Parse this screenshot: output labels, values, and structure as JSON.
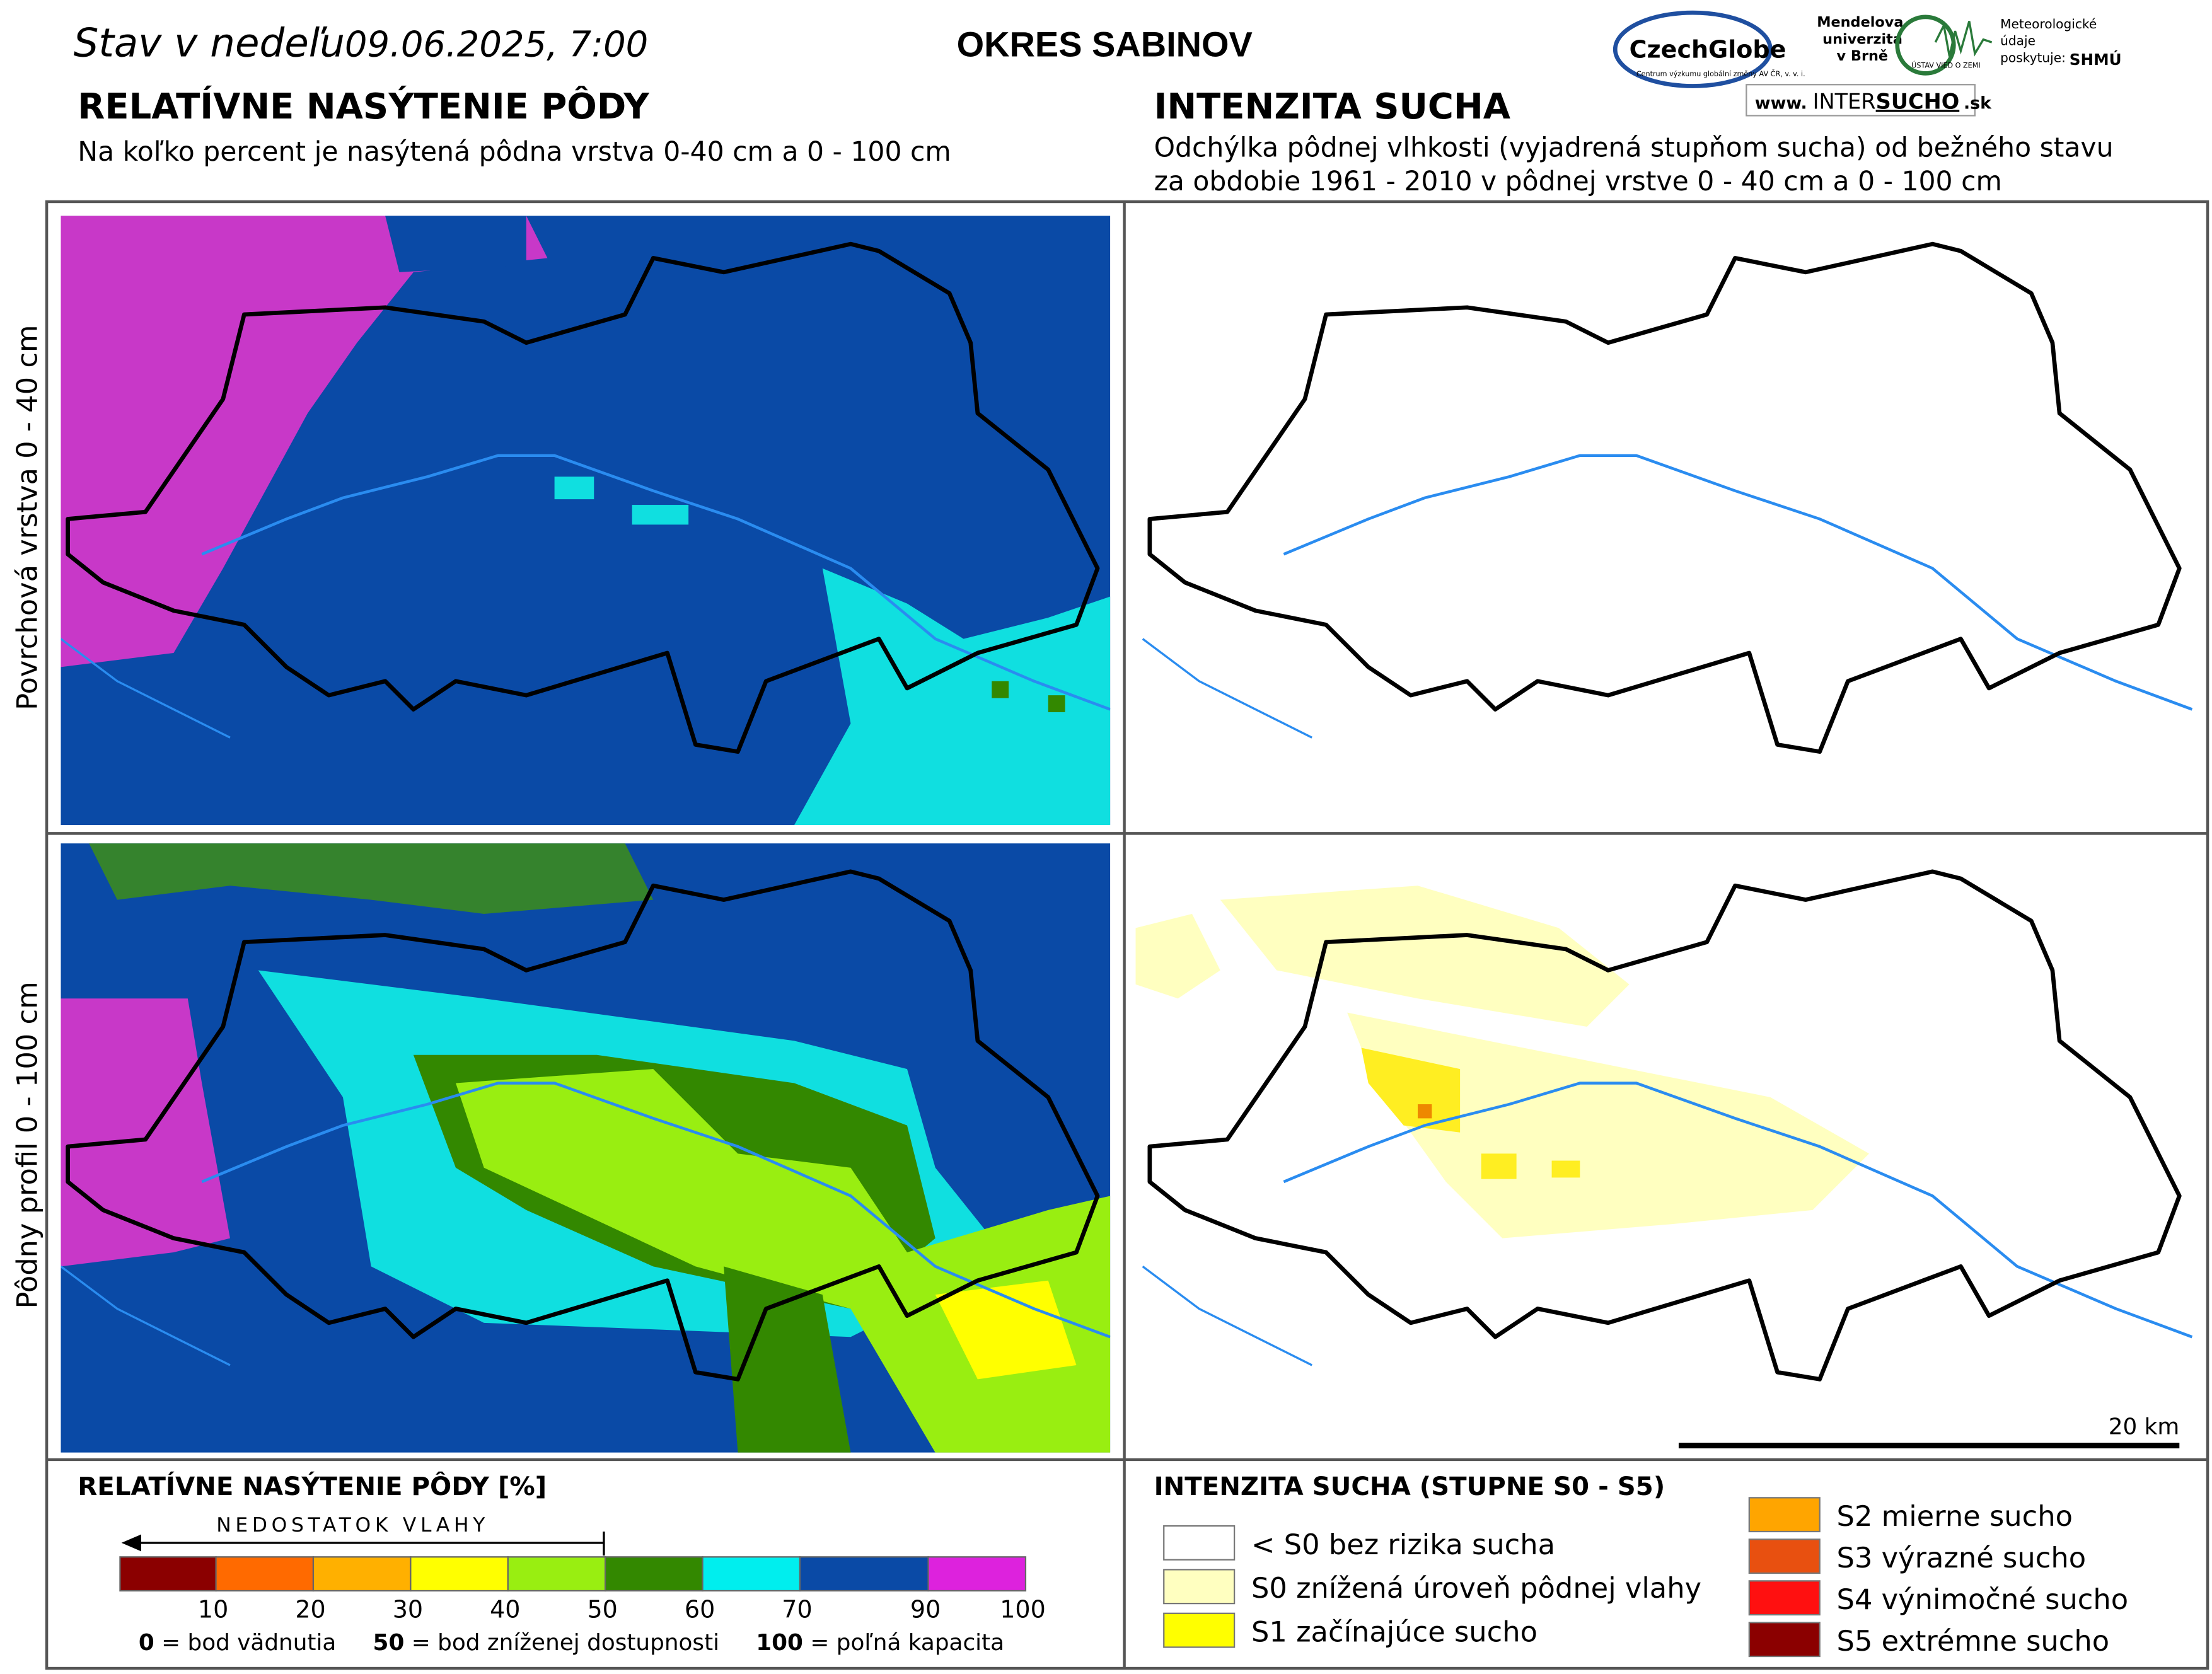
{
  "header": {
    "date_prefix": "Stav v nedeľu",
    "date": "09.06.2025, 7:00",
    "district": "OKRES  SABINOV",
    "logos": {
      "czechglobe": "CzechGlobe",
      "czechglobe_sub": "Centrum výzkumu globální změny AV ČR, v. v. i.",
      "mendel": [
        "Mendelova",
        "univerzita",
        "v Brně"
      ],
      "ustav": "ÚSTAV VIED O ZEMI",
      "meteo": [
        "Meteorologické",
        "údaje",
        "poskytuje:"
      ],
      "shmu": "SHMÚ",
      "intersucho_prefix": "www.",
      "intersucho_inter": "INTER",
      "intersucho_sucho": "SUCHO",
      "intersucho_suffix": ".sk"
    }
  },
  "left_panel": {
    "title": "RELATÍVNE NASÝTENIE PÔDY",
    "subtitle": "Na koľko percent je nasýtená pôdna vrstva 0-40 cm a 0 - 100 cm"
  },
  "right_panel": {
    "title": "INTENZITA SUCHA",
    "subtitle_lines": [
      "Odchýlka pôdnej vlhkosti (vyjadrená stupňom sucha) od bežného stavu",
      "za obdobie 1961 - 2010 v pôdnej vrstve 0 - 40 cm a 0 - 100 cm"
    ]
  },
  "row_labels": [
    "Povrchová vrstva 0 - 40 cm",
    "Pôdny profil 0 - 100 cm"
  ],
  "scale_bar": "20 km",
  "legend_saturation": {
    "title": "RELATÍVNE NASÝTENIE PÔDY [%]",
    "arrow_label": "NEDOSTATOK VLAHY",
    "colors": [
      "#8b0000",
      "#ff6a00",
      "#ffb000",
      "#ffff00",
      "#99ee11",
      "#338800",
      "#00eeee",
      "#0a4aa6",
      "#dd22dd"
    ],
    "ticks": [
      10,
      20,
      30,
      40,
      50,
      60,
      70,
      90,
      100
    ],
    "notes": [
      {
        "key": "0",
        "text": " = bod vädnutia"
      },
      {
        "key": "50",
        "text": " = bod zníženej dostupnosti"
      },
      {
        "key": "100",
        "text": " = poľná kapacita"
      }
    ]
  },
  "legend_drought": {
    "title": "INTENZITA SUCHA (STUPNE S0 - S5)",
    "items": [
      {
        "color": "#ffffff",
        "label": "< S0 bez rizika sucha"
      },
      {
        "color": "#ffffc0",
        "label": "S0 znížená úroveň pôdnej vlahy"
      },
      {
        "color": "#ffff00",
        "label": "S1 začínajúce sucho"
      },
      {
        "color": "#ffa500",
        "label": "S2 mierne sucho"
      },
      {
        "color": "#e85010",
        "label": "S3 výrazné sucho"
      },
      {
        "color": "#ff1010",
        "label": "S4 výnimočné sucho"
      },
      {
        "color": "#8b0000",
        "label": "S5 extrémne sucho"
      }
    ]
  }
}
